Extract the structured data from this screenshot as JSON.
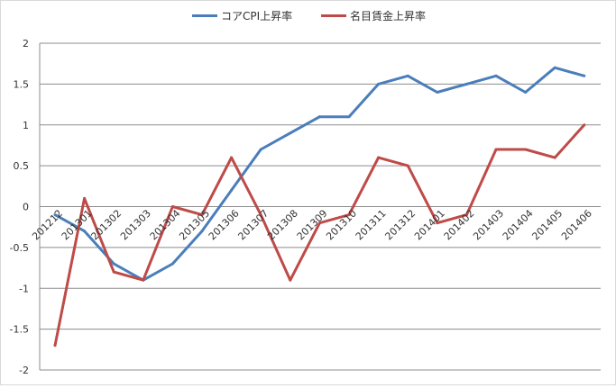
{
  "chart_data": {
    "type": "line",
    "title": "",
    "xlabel": "",
    "ylabel": "",
    "ylim": [
      -2,
      2
    ],
    "yticks": [
      2,
      1.5,
      1,
      0.5,
      0,
      -0.5,
      -1,
      -1.5,
      -2
    ],
    "ytick_labels": [
      "2",
      "1.5",
      "1",
      "0.5",
      "0",
      "-0.5",
      "-1",
      "-1.5",
      "-2"
    ],
    "grid": true,
    "legend_position": "top-center",
    "categories": [
      "201212",
      "201301",
      "201302",
      "201303",
      "201304",
      "201305",
      "201306",
      "201307",
      "201308",
      "201309",
      "201310",
      "201311",
      "201312",
      "201401",
      "201402",
      "201403",
      "201404",
      "201405",
      "201406"
    ],
    "series": [
      {
        "name": "コアCPI上昇率",
        "color": "#4a7ebb",
        "values": [
          -0.1,
          -0.3,
          -0.7,
          -0.9,
          -0.7,
          -0.3,
          0.2,
          0.7,
          0.9,
          1.1,
          1.1,
          1.5,
          1.6,
          1.4,
          1.5,
          1.6,
          1.4,
          1.7,
          1.6
        ]
      },
      {
        "name": "名目賃金上昇率",
        "color": "#be4b48",
        "values": [
          -1.7,
          0.1,
          -0.8,
          -0.9,
          0.0,
          -0.1,
          0.6,
          -0.1,
          -0.9,
          -0.2,
          -0.1,
          0.6,
          0.5,
          -0.2,
          -0.1,
          0.7,
          0.7,
          0.6,
          1.0
        ]
      }
    ]
  }
}
